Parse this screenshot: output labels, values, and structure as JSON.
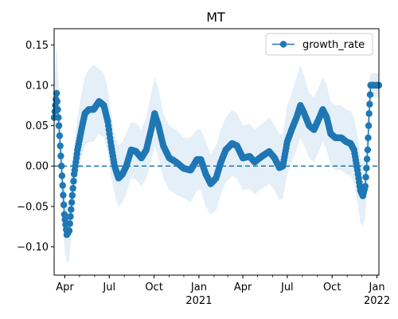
{
  "chart_data": {
    "type": "line",
    "title": "MT",
    "xlabel": "",
    "ylabel": "",
    "x_start": "2020-03-10",
    "x_end": "2022-01-05",
    "ylim": [
      -0.135,
      0.17
    ],
    "yticks": [
      -0.1,
      -0.05,
      0.0,
      0.05,
      0.1,
      0.15
    ],
    "ytick_labels": [
      "−0.10",
      "−0.05",
      "0.00",
      "0.05",
      "0.10",
      "0.15"
    ],
    "xticks": [
      {
        "date": "2020-04-01",
        "label": "Apr",
        "sublabel": ""
      },
      {
        "date": "2020-07-01",
        "label": "Jul",
        "sublabel": ""
      },
      {
        "date": "2020-10-01",
        "label": "Oct",
        "sublabel": ""
      },
      {
        "date": "2021-01-01",
        "label": "Jan",
        "sublabel": "2021"
      },
      {
        "date": "2021-04-01",
        "label": "Apr",
        "sublabel": ""
      },
      {
        "date": "2021-07-01",
        "label": "Jul",
        "sublabel": ""
      },
      {
        "date": "2021-10-01",
        "label": "Oct",
        "sublabel": ""
      },
      {
        "date": "2022-01-01",
        "label": "Jan",
        "sublabel": "2022"
      }
    ],
    "reference_line": {
      "y": 0.0,
      "style": "dashed"
    },
    "legend_position": "top-right",
    "colors": {
      "series": "#1f77b4",
      "band": "#dbe9f6"
    },
    "series": [
      {
        "name": "growth_rate",
        "marker": "circle",
        "points": [
          {
            "date": "2020-03-10",
            "y": 0.06,
            "lo": 0.02,
            "hi": 0.1
          },
          {
            "date": "2020-03-15",
            "y": 0.09,
            "lo": 0.05,
            "hi": 0.15
          },
          {
            "date": "2020-03-20",
            "y": 0.05,
            "lo": 0.0,
            "hi": 0.09
          },
          {
            "date": "2020-03-25",
            "y": 0.0,
            "lo": -0.04,
            "hi": 0.04
          },
          {
            "date": "2020-03-31",
            "y": -0.06,
            "lo": -0.1,
            "hi": -0.02
          },
          {
            "date": "2020-04-05",
            "y": -0.085,
            "lo": -0.12,
            "hi": -0.05
          },
          {
            "date": "2020-04-10",
            "y": -0.08,
            "lo": -0.115,
            "hi": -0.045
          },
          {
            "date": "2020-04-15",
            "y": -0.045,
            "lo": -0.08,
            "hi": -0.01
          },
          {
            "date": "2020-04-20",
            "y": -0.01,
            "lo": -0.045,
            "hi": 0.025
          },
          {
            "date": "2020-04-27",
            "y": 0.02,
            "lo": -0.015,
            "hi": 0.06
          },
          {
            "date": "2020-05-05",
            "y": 0.045,
            "lo": 0.01,
            "hi": 0.09
          },
          {
            "date": "2020-05-12",
            "y": 0.065,
            "lo": 0.025,
            "hi": 0.11
          },
          {
            "date": "2020-05-20",
            "y": 0.07,
            "lo": 0.03,
            "hi": 0.12
          },
          {
            "date": "2020-05-30",
            "y": 0.07,
            "lo": 0.03,
            "hi": 0.125
          },
          {
            "date": "2020-06-10",
            "y": 0.08,
            "lo": 0.04,
            "hi": 0.12
          },
          {
            "date": "2020-06-20",
            "y": 0.075,
            "lo": 0.035,
            "hi": 0.115
          },
          {
            "date": "2020-06-28",
            "y": 0.055,
            "lo": 0.015,
            "hi": 0.095
          },
          {
            "date": "2020-07-05",
            "y": 0.025,
            "lo": -0.015,
            "hi": 0.065
          },
          {
            "date": "2020-07-12",
            "y": 0.0,
            "lo": -0.035,
            "hi": 0.04
          },
          {
            "date": "2020-07-20",
            "y": -0.015,
            "lo": -0.05,
            "hi": 0.025
          },
          {
            "date": "2020-07-28",
            "y": -0.01,
            "lo": -0.045,
            "hi": 0.03
          },
          {
            "date": "2020-08-05",
            "y": 0.0,
            "lo": -0.035,
            "hi": 0.04
          },
          {
            "date": "2020-08-15",
            "y": 0.02,
            "lo": -0.015,
            "hi": 0.055
          },
          {
            "date": "2020-08-25",
            "y": 0.018,
            "lo": -0.017,
            "hi": 0.053
          },
          {
            "date": "2020-09-05",
            "y": 0.01,
            "lo": -0.025,
            "hi": 0.045
          },
          {
            "date": "2020-09-15",
            "y": 0.02,
            "lo": -0.015,
            "hi": 0.06
          },
          {
            "date": "2020-09-25",
            "y": 0.045,
            "lo": 0.005,
            "hi": 0.09
          },
          {
            "date": "2020-10-02",
            "y": 0.065,
            "lo": 0.025,
            "hi": 0.11
          },
          {
            "date": "2020-10-10",
            "y": 0.05,
            "lo": 0.01,
            "hi": 0.095
          },
          {
            "date": "2020-10-20",
            "y": 0.025,
            "lo": -0.015,
            "hi": 0.065
          },
          {
            "date": "2020-11-01",
            "y": 0.01,
            "lo": -0.03,
            "hi": 0.05
          },
          {
            "date": "2020-11-15",
            "y": 0.005,
            "lo": -0.035,
            "hi": 0.045
          },
          {
            "date": "2020-12-01",
            "y": -0.003,
            "lo": -0.04,
            "hi": 0.035
          },
          {
            "date": "2020-12-15",
            "y": -0.005,
            "lo": -0.045,
            "hi": 0.035
          },
          {
            "date": "2020-12-28",
            "y": 0.008,
            "lo": -0.03,
            "hi": 0.045
          },
          {
            "date": "2021-01-05",
            "y": 0.008,
            "lo": -0.03,
            "hi": 0.045
          },
          {
            "date": "2021-01-15",
            "y": -0.01,
            "lo": -0.05,
            "hi": 0.03
          },
          {
            "date": "2021-01-25",
            "y": -0.022,
            "lo": -0.06,
            "hi": 0.015
          },
          {
            "date": "2021-02-05",
            "y": -0.015,
            "lo": -0.055,
            "hi": 0.025
          },
          {
            "date": "2021-02-15",
            "y": 0.005,
            "lo": -0.035,
            "hi": 0.045
          },
          {
            "date": "2021-02-25",
            "y": 0.02,
            "lo": -0.02,
            "hi": 0.06
          },
          {
            "date": "2021-03-10",
            "y": 0.028,
            "lo": -0.012,
            "hi": 0.07
          },
          {
            "date": "2021-03-20",
            "y": 0.025,
            "lo": -0.015,
            "hi": 0.065
          },
          {
            "date": "2021-04-01",
            "y": 0.01,
            "lo": -0.03,
            "hi": 0.05
          },
          {
            "date": "2021-04-15",
            "y": 0.012,
            "lo": -0.028,
            "hi": 0.052
          },
          {
            "date": "2021-04-25",
            "y": 0.005,
            "lo": -0.035,
            "hi": 0.045
          },
          {
            "date": "2021-05-10",
            "y": 0.012,
            "lo": -0.028,
            "hi": 0.052
          },
          {
            "date": "2021-05-25",
            "y": 0.018,
            "lo": -0.022,
            "hi": 0.06
          },
          {
            "date": "2021-06-05",
            "y": 0.01,
            "lo": -0.03,
            "hi": 0.05
          },
          {
            "date": "2021-06-15",
            "y": -0.002,
            "lo": -0.042,
            "hi": 0.04
          },
          {
            "date": "2021-06-22",
            "y": 0.0,
            "lo": -0.04,
            "hi": 0.04
          },
          {
            "date": "2021-07-01",
            "y": 0.03,
            "lo": -0.01,
            "hi": 0.075
          },
          {
            "date": "2021-07-10",
            "y": 0.045,
            "lo": 0.005,
            "hi": 0.09
          },
          {
            "date": "2021-07-20",
            "y": 0.06,
            "lo": 0.02,
            "hi": 0.11
          },
          {
            "date": "2021-07-28",
            "y": 0.075,
            "lo": 0.035,
            "hi": 0.125
          },
          {
            "date": "2021-08-05",
            "y": 0.065,
            "lo": 0.025,
            "hi": 0.11
          },
          {
            "date": "2021-08-15",
            "y": 0.05,
            "lo": 0.01,
            "hi": 0.09
          },
          {
            "date": "2021-08-25",
            "y": 0.045,
            "lo": 0.005,
            "hi": 0.085
          },
          {
            "date": "2021-09-05",
            "y": 0.06,
            "lo": 0.02,
            "hi": 0.1
          },
          {
            "date": "2021-09-12",
            "y": 0.07,
            "lo": 0.03,
            "hi": 0.11
          },
          {
            "date": "2021-09-20",
            "y": 0.06,
            "lo": 0.02,
            "hi": 0.1
          },
          {
            "date": "2021-09-28",
            "y": 0.04,
            "lo": 0.0,
            "hi": 0.08
          },
          {
            "date": "2021-10-08",
            "y": 0.035,
            "lo": -0.005,
            "hi": 0.075
          },
          {
            "date": "2021-10-20",
            "y": 0.035,
            "lo": -0.005,
            "hi": 0.075
          },
          {
            "date": "2021-10-30",
            "y": 0.03,
            "lo": -0.01,
            "hi": 0.07
          },
          {
            "date": "2021-11-08",
            "y": 0.028,
            "lo": -0.012,
            "hi": 0.068
          },
          {
            "date": "2021-11-15",
            "y": 0.02,
            "lo": -0.02,
            "hi": 0.06
          },
          {
            "date": "2021-11-22",
            "y": -0.005,
            "lo": -0.045,
            "hi": 0.04
          },
          {
            "date": "2021-11-28",
            "y": -0.03,
            "lo": -0.07,
            "hi": 0.01
          },
          {
            "date": "2021-12-03",
            "y": -0.037,
            "lo": -0.075,
            "hi": 0.002
          },
          {
            "date": "2021-12-08",
            "y": -0.025,
            "lo": -0.065,
            "hi": 0.015
          },
          {
            "date": "2021-12-13",
            "y": 0.02,
            "lo": -0.02,
            "hi": 0.06
          },
          {
            "date": "2021-12-16",
            "y": 0.065,
            "lo": 0.025,
            "hi": 0.105
          },
          {
            "date": "2021-12-19",
            "y": 0.1,
            "lo": 0.085,
            "hi": 0.115
          },
          {
            "date": "2022-01-05",
            "y": 0.1,
            "lo": 0.085,
            "hi": 0.115
          }
        ]
      }
    ]
  }
}
